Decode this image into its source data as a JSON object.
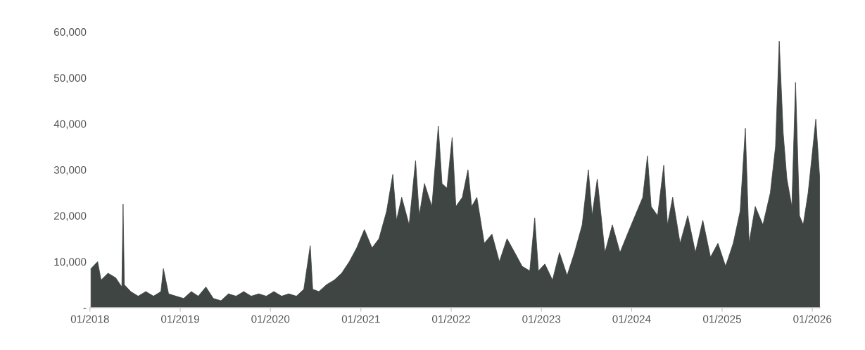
{
  "chart_data": {
    "type": "area",
    "color": "#3f4542",
    "x": [
      "2018-01-05",
      "2018-02-01",
      "2018-02-15",
      "2018-03-15",
      "2018-04-15",
      "2018-05-10",
      "2018-05-15",
      "2018-05-20",
      "2018-06-15",
      "2018-07-15",
      "2018-08-15",
      "2018-09-15",
      "2018-10-15",
      "2018-10-25",
      "2018-11-15",
      "2018-12-15",
      "2019-01-15",
      "2019-02-15",
      "2019-03-15",
      "2019-04-15",
      "2019-05-15",
      "2019-06-15",
      "2019-07-15",
      "2019-08-15",
      "2019-09-15",
      "2019-10-15",
      "2019-11-15",
      "2019-12-15",
      "2020-01-15",
      "2020-02-15",
      "2020-03-15",
      "2020-04-15",
      "2020-05-15",
      "2020-06-10",
      "2020-06-20",
      "2020-07-15",
      "2020-08-15",
      "2020-09-15",
      "2020-10-15",
      "2020-11-15",
      "2020-12-15",
      "2021-01-15",
      "2021-02-15",
      "2021-03-15",
      "2021-04-15",
      "2021-05-10",
      "2021-05-25",
      "2021-06-15",
      "2021-07-15",
      "2021-08-10",
      "2021-08-25",
      "2021-09-15",
      "2021-10-15",
      "2021-11-10",
      "2021-11-25",
      "2021-12-15",
      "2022-01-05",
      "2022-01-20",
      "2022-02-15",
      "2022-03-10",
      "2022-03-25",
      "2022-04-15",
      "2022-05-15",
      "2022-06-15",
      "2022-07-15",
      "2022-08-15",
      "2022-09-15",
      "2022-10-15",
      "2022-11-15",
      "2022-12-05",
      "2022-12-20",
      "2023-01-15",
      "2023-02-15",
      "2023-03-15",
      "2023-04-15",
      "2023-05-15",
      "2023-06-15",
      "2023-07-10",
      "2023-07-25",
      "2023-08-15",
      "2023-09-15",
      "2023-10-15",
      "2023-11-15",
      "2023-12-15",
      "2024-01-15",
      "2024-02-15",
      "2024-03-05",
      "2024-03-20",
      "2024-04-15",
      "2024-05-10",
      "2024-05-25",
      "2024-06-15",
      "2024-07-15",
      "2024-08-15",
      "2024-09-15",
      "2024-10-15",
      "2024-11-15",
      "2024-12-15",
      "2025-01-15",
      "2025-02-15",
      "2025-03-15",
      "2025-04-05",
      "2025-04-20",
      "2025-05-15",
      "2025-06-15",
      "2025-07-15",
      "2025-08-05",
      "2025-08-20",
      "2025-09-05",
      "2025-09-20",
      "2025-10-10",
      "2025-10-25",
      "2025-11-10",
      "2025-11-25",
      "2025-12-15",
      "2026-01-15",
      "2026-01-31"
    ],
    "values": [
      8500,
      10000,
      6000,
      7500,
      6500,
      4500,
      22500,
      5000,
      3500,
      2500,
      3500,
      2500,
      3500,
      8500,
      3000,
      2500,
      2000,
      3500,
      2500,
      4500,
      2000,
      1500,
      3000,
      2500,
      3500,
      2500,
      3000,
      2500,
      3500,
      2500,
      3000,
      2500,
      4000,
      13500,
      4000,
      3500,
      5000,
      6000,
      7500,
      10000,
      13000,
      17000,
      13000,
      15000,
      21000,
      29000,
      19000,
      24000,
      18000,
      32000,
      20000,
      27000,
      22000,
      39500,
      27000,
      26000,
      37000,
      22000,
      24000,
      30000,
      22000,
      24000,
      14000,
      16000,
      10000,
      15000,
      12000,
      9000,
      8000,
      19500,
      8000,
      9500,
      6000,
      12000,
      7000,
      12000,
      18000,
      30000,
      20000,
      28000,
      12000,
      18000,
      12000,
      16000,
      20000,
      24000,
      33000,
      22000,
      20000,
      31000,
      18000,
      24000,
      14000,
      20000,
      12000,
      19000,
      11000,
      14000,
      9000,
      14000,
      21000,
      39000,
      14000,
      22000,
      18000,
      25000,
      35000,
      58000,
      38000,
      28000,
      22000,
      49000,
      20000,
      18000,
      25000,
      41000,
      28000
    ],
    "xlim": [
      "2018-01-01",
      "2026-02-01"
    ],
    "xticks": [
      {
        "value": "2018-01-01",
        "label": "01/2018"
      },
      {
        "value": "2019-01-01",
        "label": "01/2019"
      },
      {
        "value": "2020-01-01",
        "label": "01/2020"
      },
      {
        "value": "2021-01-01",
        "label": "01/2021"
      },
      {
        "value": "2022-01-01",
        "label": "01/2022"
      },
      {
        "value": "2023-01-01",
        "label": "01/2023"
      },
      {
        "value": "2024-01-01",
        "label": "01/2024"
      },
      {
        "value": "2025-01-01",
        "label": "01/2025"
      },
      {
        "value": "2026-01-01",
        "label": "01/2026"
      }
    ],
    "ylim": [
      0,
      60000
    ],
    "yticks": [
      {
        "value": 0,
        "label": "-"
      },
      {
        "value": 10000,
        "label": "10,000"
      },
      {
        "value": 20000,
        "label": "20,000"
      },
      {
        "value": 30000,
        "label": "30,000"
      },
      {
        "value": 40000,
        "label": "40,000"
      },
      {
        "value": 50000,
        "label": "50,000"
      },
      {
        "value": 60000,
        "label": "60,000"
      }
    ],
    "grid": false
  }
}
